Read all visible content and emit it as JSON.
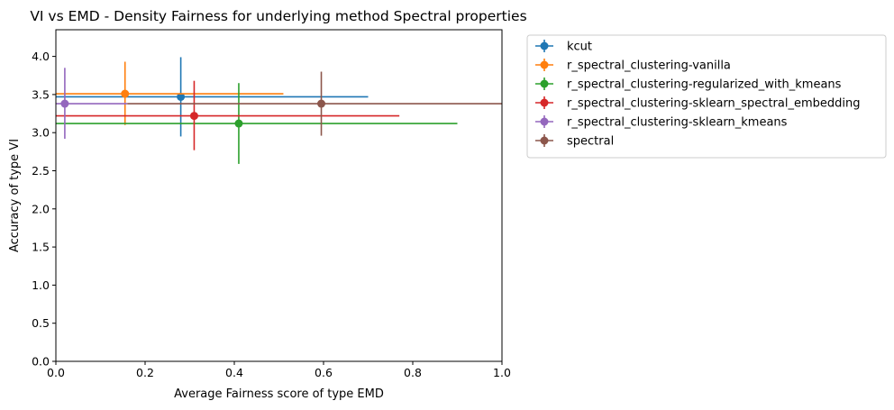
{
  "chart_data": {
    "type": "scatter",
    "title": "VI vs EMD - Density Fairness for underlying method Spectral properties",
    "xlabel": "Average Fairness score of type EMD",
    "ylabel": "Accuracy of type VI",
    "xlim": [
      0,
      1.0
    ],
    "ylim": [
      0,
      4.35
    ],
    "xticks": [
      "0.0",
      "0.2",
      "0.4",
      "0.6",
      "0.8",
      "1.0"
    ],
    "yticks": [
      "0.0",
      "0.5",
      "1.0",
      "1.5",
      "2.0",
      "2.5",
      "3.0",
      "3.5",
      "4.0"
    ],
    "grid": false,
    "legend_position": "outside-top-right",
    "series": [
      {
        "name": "kcut",
        "color": "#1f77b4",
        "x": 0.28,
        "y": 3.47,
        "xerr_low": 0.28,
        "xerr_high": 0.42,
        "yerr_low": 0.52,
        "yerr_high": 0.52
      },
      {
        "name": "r_spectral_clustering-vanilla",
        "color": "#ff7f0e",
        "x": 0.155,
        "y": 3.51,
        "xerr_low": 0.155,
        "xerr_high": 0.355,
        "yerr_low": 0.41,
        "yerr_high": 0.42
      },
      {
        "name": "r_spectral_clustering-regularized_with_kmeans",
        "color": "#2ca02c",
        "x": 0.41,
        "y": 3.12,
        "xerr_low": 0.41,
        "xerr_high": 0.49,
        "yerr_low": 0.53,
        "yerr_high": 0.53
      },
      {
        "name": "r_spectral_clustering-sklearn_spectral_embedding",
        "color": "#d62728",
        "x": 0.31,
        "y": 3.22,
        "xerr_low": 0.31,
        "xerr_high": 0.46,
        "yerr_low": 0.45,
        "yerr_high": 0.46
      },
      {
        "name": "r_spectral_clustering-sklearn_kmeans",
        "color": "#9467bd",
        "x": 0.02,
        "y": 3.38,
        "xerr_low": 0.02,
        "xerr_high": 0.14,
        "yerr_low": 0.46,
        "yerr_high": 0.47
      },
      {
        "name": "spectral",
        "color": "#8c564b",
        "x": 0.595,
        "y": 3.38,
        "xerr_low": 0.435,
        "xerr_high": 0.52,
        "yerr_low": 0.42,
        "yerr_high": 0.42
      }
    ]
  }
}
